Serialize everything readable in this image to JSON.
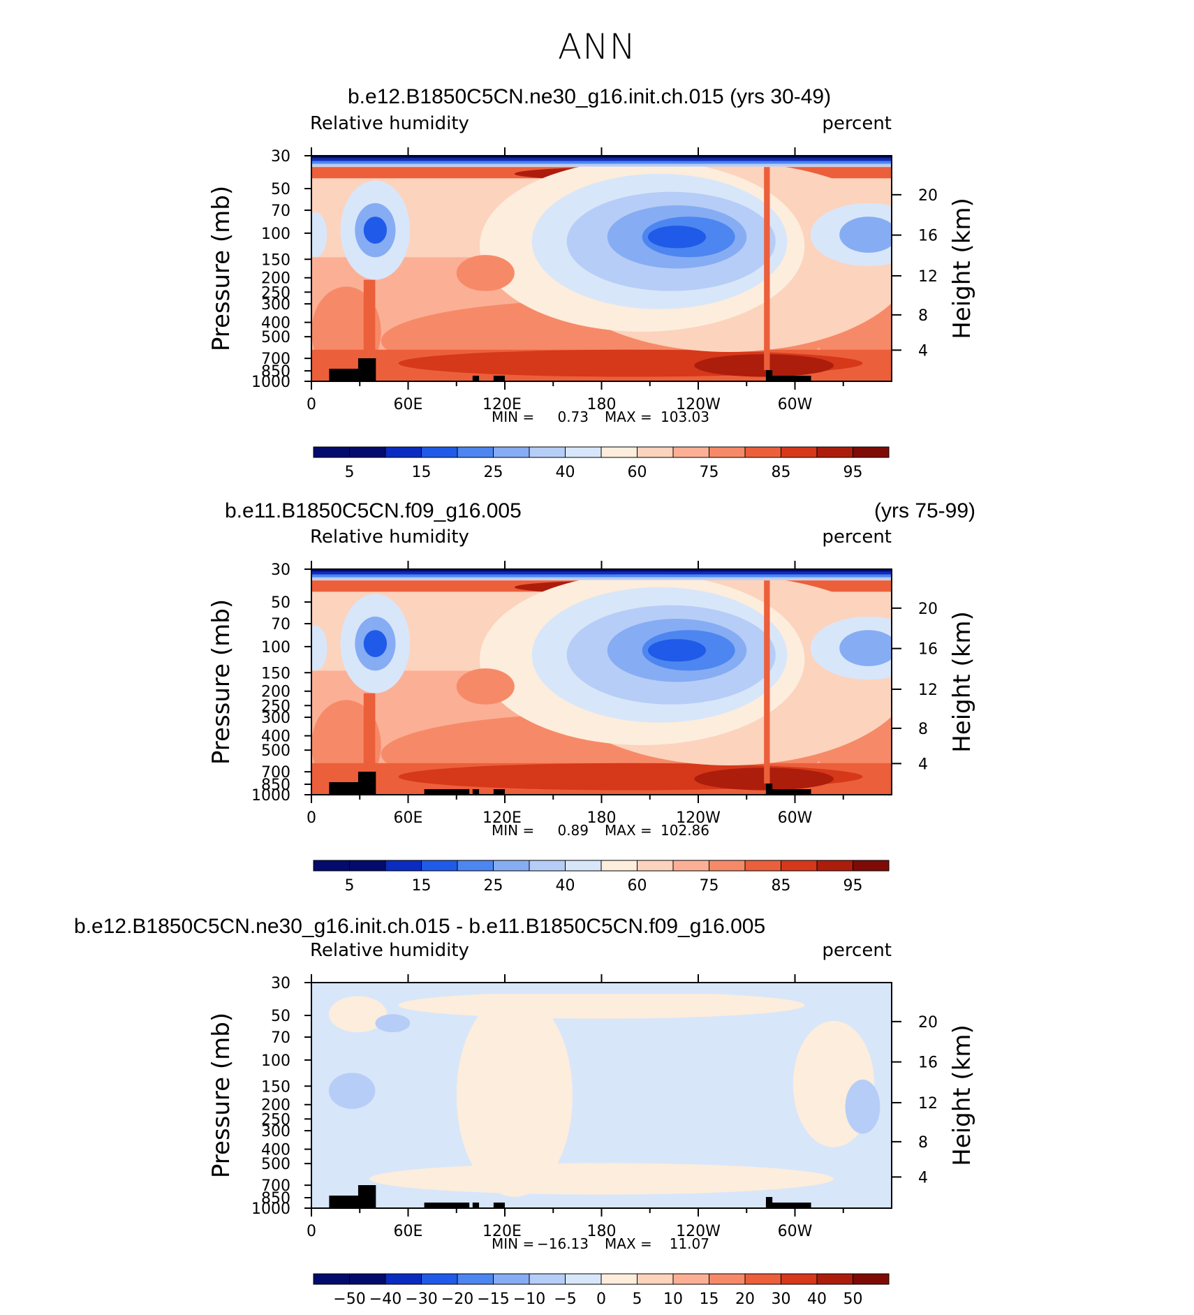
{
  "main_title": "ANN",
  "colors": {
    "relhum_scale": [
      "#030b6c",
      "#0a2cc0",
      "#1f5be8",
      "#4d86f0",
      "#86acf3",
      "#b6cdf7",
      "#d8e6fa",
      "#fdeddc",
      "#fcd3bd",
      "#fbb096",
      "#f68a68",
      "#ec5f3b",
      "#d6381a",
      "#ad1d0c",
      "#7f0b06"
    ],
    "diff_scale": [
      "#030b6c",
      "#0a2cc0",
      "#1f5be8",
      "#4d86f0",
      "#86acf3",
      "#b6cdf7",
      "#d8e6fa",
      "#fdeddc",
      "#fcd3bd",
      "#fbb096",
      "#f68a68",
      "#ec5f3b",
      "#d6381a",
      "#ad1d0c",
      "#7f0b06"
    ],
    "topography": "#000000"
  },
  "chart_data": [
    {
      "type": "heatmap",
      "title": "b.e12.B1850C5CN.ne30_g16.init.ch.015 (yrs 30-49)",
      "title_right": "",
      "variable": "Relative  humidity",
      "units": "percent",
      "ylabel": "Pressure  (mb)",
      "ylabel_right": "Height  (km)",
      "x_ticks": [
        "0",
        "60E",
        "120E",
        "180",
        "120W",
        "60W"
      ],
      "y_ticks": [
        "30",
        "50",
        "70",
        "100",
        "150",
        "200",
        "250",
        "300",
        "400",
        "500",
        "700",
        "850",
        "1000"
      ],
      "y_ticks_right": [
        "20",
        "16",
        "12",
        "8",
        "4"
      ],
      "min_label": "MIN =",
      "min_value": "0.73",
      "max_label": "MAX =",
      "max_value": "103.03",
      "colorbar_labels": [
        "5",
        "15",
        "25",
        "40",
        "60",
        "75",
        "85",
        "95"
      ]
    },
    {
      "type": "heatmap",
      "title": "b.e11.B1850C5CN.f09_g16.005",
      "title_right": "(yrs 75-99)",
      "variable": "Relative  humidity",
      "units": "percent",
      "ylabel": "Pressure  (mb)",
      "ylabel_right": "Height  (km)",
      "x_ticks": [
        "0",
        "60E",
        "120E",
        "180",
        "120W",
        "60W"
      ],
      "y_ticks": [
        "30",
        "50",
        "70",
        "100",
        "150",
        "200",
        "250",
        "300",
        "400",
        "500",
        "700",
        "850",
        "1000"
      ],
      "y_ticks_right": [
        "20",
        "16",
        "12",
        "8",
        "4"
      ],
      "min_label": "MIN =",
      "min_value": "0.89",
      "max_label": "MAX =",
      "max_value": "102.86",
      "colorbar_labels": [
        "5",
        "15",
        "25",
        "40",
        "60",
        "75",
        "85",
        "95"
      ]
    },
    {
      "type": "heatmap",
      "title": "b.e12.B1850C5CN.ne30_g16.init.ch.015 - b.e11.B1850C5CN.f09_g16.005",
      "title_right": "",
      "variable": "Relative  humidity",
      "units": "percent",
      "ylabel": "Pressure  (mb)",
      "ylabel_right": "Height  (km)",
      "x_ticks": [
        "0",
        "60E",
        "120E",
        "180",
        "120W",
        "60W"
      ],
      "y_ticks": [
        "30",
        "50",
        "70",
        "100",
        "150",
        "200",
        "250",
        "300",
        "400",
        "500",
        "700",
        "850",
        "1000"
      ],
      "y_ticks_right": [
        "20",
        "16",
        "12",
        "8",
        "4"
      ],
      "min_label": "MIN =",
      "min_value": "−16.13",
      "max_label": "MAX =",
      "max_value": "11.07",
      "colorbar_labels": [
        "−50",
        "−40",
        "−30",
        "−20",
        "−15",
        "−10",
        "−5",
        "0",
        "5",
        "10",
        "15",
        "20",
        "30",
        "40",
        "50"
      ]
    }
  ]
}
